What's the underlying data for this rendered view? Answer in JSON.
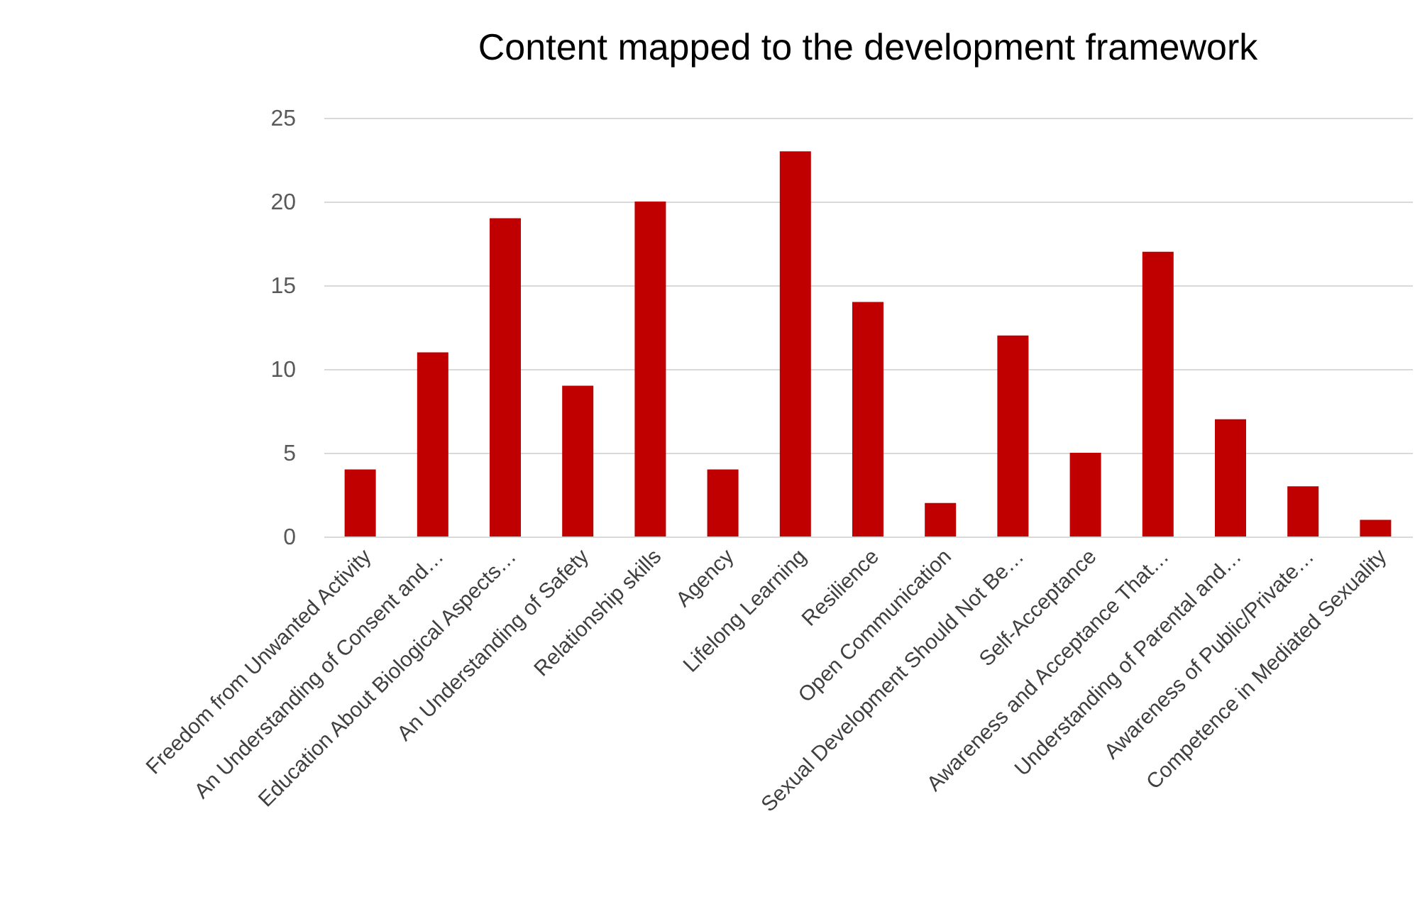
{
  "chart_data": {
    "type": "bar",
    "title": "Content mapped to the development framework",
    "categories": [
      "Freedom from Unwanted Activity",
      "An Understanding of Consent and…",
      "Education About Biological Aspects…",
      "An Understanding of Safety",
      "Relationship skills",
      "Agency",
      "Lifelong Learning",
      "Resilience",
      "Open Communication",
      "Sexual Development Should Not Be…",
      "Self-Acceptance",
      "Awareness and Acceptance That…",
      "Understanding of Parental and…",
      "Awareness of Public/Private…",
      "Competence in Mediated Sexuality"
    ],
    "values": [
      4,
      11,
      19,
      9,
      20,
      4,
      23,
      14,
      2,
      12,
      5,
      17,
      7,
      3,
      1
    ],
    "color": "#c00000",
    "ylim": [
      0,
      25
    ],
    "yticks": [
      0,
      5,
      10,
      15,
      20,
      25
    ],
    "grid": "y"
  }
}
